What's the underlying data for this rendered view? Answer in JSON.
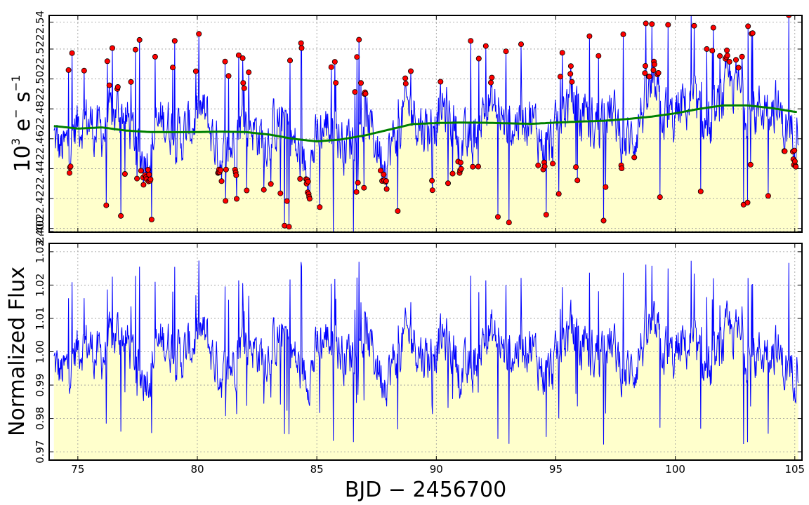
{
  "chart_data": [
    {
      "type": "line",
      "panel": "top",
      "ylabel": "10³ e⁻ s⁻¹",
      "ylabel_parts": {
        "base": "10",
        "exp": "3",
        "unit1": "e",
        "unit1_exp": "−",
        "unit2": "s",
        "unit2_exp": "−1"
      },
      "xlim": [
        73.8,
        105.3
      ],
      "ylim": [
        2.3995,
        2.5445
      ],
      "y_ticks": [
        2.4,
        2.402,
        2.422,
        2.442,
        2.462,
        2.482,
        2.502,
        2.522,
        2.54
      ],
      "y_tick_labels": [
        "2.400",
        "2.402",
        "2.422",
        "2.442",
        "2.462",
        "2.482",
        "2.502",
        "2.522",
        "2.54"
      ],
      "fill_below_series": true,
      "colors": {
        "raw": "#0000ff",
        "trend": "#008000",
        "outlier_fill": "#ff0000",
        "outlier_edge": "#000000",
        "fill": "#ffffcc"
      },
      "series": [
        {
          "kind": "raw_flux_with_outliers_marked"
        },
        {
          "kind": "trend",
          "x": [
            74.0,
            75.0,
            76.0,
            77.0,
            78.0,
            79.0,
            80.0,
            81.0,
            82.0,
            83.0,
            84.0,
            85.0,
            86.0,
            87.0,
            88.0,
            89.0,
            90.0,
            91.0,
            92.0,
            93.0,
            94.0,
            95.0,
            96.0,
            97.0,
            98.0,
            99.0,
            100.0,
            101.0,
            102.0,
            103.0,
            104.0,
            105.0
          ],
          "y": [
            2.4705,
            2.4688,
            2.4696,
            2.4675,
            2.4665,
            2.4664,
            2.4665,
            2.4667,
            2.4665,
            2.4648,
            2.462,
            2.4602,
            2.4615,
            2.4642,
            2.468,
            2.4718,
            2.4725,
            2.4728,
            2.4727,
            2.4723,
            2.472,
            2.4728,
            2.4735,
            2.474,
            2.4752,
            2.4768,
            2.479,
            2.482,
            2.4843,
            2.4843,
            2.4826,
            2.48
          ]
        }
      ]
    },
    {
      "type": "line",
      "panel": "bottom",
      "xlabel": "BJD − 2456700",
      "ylabel": "Normalized Flux",
      "xlim": [
        73.8,
        105.3
      ],
      "ylim": [
        0.9675,
        1.0325
      ],
      "x_ticks": [
        75,
        80,
        85,
        90,
        95,
        100,
        105
      ],
      "x_tick_labels": [
        "75",
        "80",
        "85",
        "90",
        "95",
        "100",
        "105"
      ],
      "y_ticks": [
        0.97,
        0.98,
        0.99,
        1.0,
        1.01,
        1.02,
        1.03
      ],
      "y_tick_labels": [
        "0.97",
        "0.98",
        "0.99",
        "1.00",
        "1.01",
        "1.02",
        "1.03"
      ],
      "fill_below_series": true,
      "colors": {
        "line": "#0000ff",
        "fill": "#ffffcc"
      },
      "series": [
        {
          "kind": "normalized_flux"
        }
      ]
    }
  ]
}
